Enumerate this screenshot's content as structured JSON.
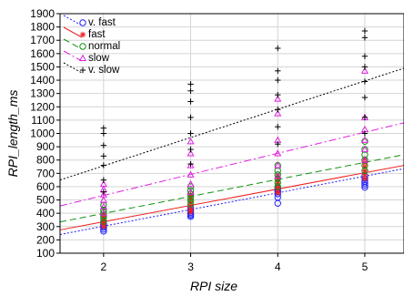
{
  "chart_data": {
    "type": "scatter",
    "xlabel": "RPI  size",
    "ylabel": "RPI_length_ms",
    "xlim": [
      1.5,
      5.45
    ],
    "ylim": [
      100,
      1900
    ],
    "xticks": [
      2,
      3,
      4,
      5
    ],
    "yticks": [
      100,
      200,
      300,
      400,
      500,
      600,
      700,
      800,
      900,
      1000,
      1100,
      1200,
      1300,
      1400,
      1500,
      1600,
      1700,
      1800,
      1900
    ],
    "grid": true,
    "legend_position": "top-left",
    "series": [
      {
        "name": "v. fast",
        "marker": "circle",
        "color": "#2020ff",
        "line_style": "dotted",
        "fit": [
          [
            1.5,
            240
          ],
          [
            5.45,
            735
          ]
        ],
        "points": [
          [
            2,
            265
          ],
          [
            2,
            280
          ],
          [
            2,
            295
          ],
          [
            2,
            305
          ],
          [
            2,
            315
          ],
          [
            2,
            325
          ],
          [
            3,
            375
          ],
          [
            3,
            385
          ],
          [
            3,
            395
          ],
          [
            3,
            405
          ],
          [
            3,
            420
          ],
          [
            3,
            440
          ],
          [
            4,
            475
          ],
          [
            4,
            520
          ],
          [
            4,
            545
          ],
          [
            4,
            560
          ],
          [
            4,
            575
          ],
          [
            4,
            590
          ],
          [
            5,
            595
          ],
          [
            5,
            610
          ],
          [
            5,
            625
          ],
          [
            5,
            640
          ],
          [
            5,
            660
          ],
          [
            5,
            680
          ]
        ]
      },
      {
        "name": "fast",
        "marker": "asterisk",
        "color": "#ee2020",
        "line_style": "solid",
        "fit": [
          [
            1.5,
            275
          ],
          [
            5.45,
            760
          ]
        ],
        "points": [
          [
            2,
            300
          ],
          [
            2,
            320
          ],
          [
            2,
            335
          ],
          [
            2,
            350
          ],
          [
            2,
            370
          ],
          [
            2,
            390
          ],
          [
            3,
            410
          ],
          [
            3,
            430
          ],
          [
            3,
            455
          ],
          [
            3,
            480
          ],
          [
            3,
            510
          ],
          [
            3,
            540
          ],
          [
            4,
            555
          ],
          [
            4,
            580
          ],
          [
            4,
            600
          ],
          [
            4,
            625
          ],
          [
            4,
            650
          ],
          [
            4,
            680
          ],
          [
            5,
            660
          ],
          [
            5,
            690
          ],
          [
            5,
            720
          ],
          [
            5,
            750
          ],
          [
            5,
            780
          ],
          [
            5,
            810
          ]
        ]
      },
      {
        "name": "normal",
        "marker": "circle",
        "color": "#109010",
        "line_style": "dashed",
        "fit": [
          [
            1.5,
            335
          ],
          [
            5.45,
            840
          ]
        ],
        "points": [
          [
            2,
            340
          ],
          [
            2,
            365
          ],
          [
            2,
            385
          ],
          [
            2,
            405
          ],
          [
            2,
            425
          ],
          [
            2,
            460
          ],
          [
            3,
            470
          ],
          [
            3,
            495
          ],
          [
            3,
            520
          ],
          [
            3,
            545
          ],
          [
            3,
            570
          ],
          [
            3,
            600
          ],
          [
            4,
            600
          ],
          [
            4,
            630
          ],
          [
            4,
            660
          ],
          [
            4,
            690
          ],
          [
            4,
            720
          ],
          [
            4,
            760
          ],
          [
            5,
            720
          ],
          [
            5,
            760
          ],
          [
            5,
            800
          ],
          [
            5,
            840
          ],
          [
            5,
            880
          ],
          [
            5,
            940
          ]
        ]
      },
      {
        "name": "slow",
        "marker": "triangle",
        "color": "#e020e0",
        "line_style": "dash-dot",
        "fit": [
          [
            1.5,
            455
          ],
          [
            5.45,
            1080
          ]
        ],
        "points": [
          [
            2,
            400
          ],
          [
            2,
            450
          ],
          [
            2,
            500
          ],
          [
            2,
            540
          ],
          [
            2,
            580
          ],
          [
            2,
            620
          ],
          [
            3,
            560
          ],
          [
            3,
            620
          ],
          [
            3,
            690
          ],
          [
            3,
            760
          ],
          [
            3,
            850
          ],
          [
            3,
            940
          ],
          [
            4,
            680
          ],
          [
            4,
            760
          ],
          [
            4,
            850
          ],
          [
            4,
            950
          ],
          [
            4,
            1150
          ],
          [
            4,
            1260
          ],
          [
            5,
            800
          ],
          [
            5,
            880
          ],
          [
            5,
            950
          ],
          [
            5,
            1030
          ],
          [
            5,
            1120
          ],
          [
            5,
            1470
          ]
        ]
      },
      {
        "name": "v. slow",
        "marker": "plus",
        "color": "#000000",
        "line_style": "dotted",
        "fit": [
          [
            1.5,
            650
          ],
          [
            5.45,
            1490
          ]
        ],
        "points": [
          [
            2,
            560
          ],
          [
            2,
            650
          ],
          [
            2,
            760
          ],
          [
            2,
            830
          ],
          [
            2,
            910
          ],
          [
            2,
            1000
          ],
          [
            2,
            1040
          ],
          [
            3,
            770
          ],
          [
            3,
            880
          ],
          [
            3,
            1000
          ],
          [
            3,
            1120
          ],
          [
            3,
            1240
          ],
          [
            3,
            1320
          ],
          [
            3,
            1370
          ],
          [
            4,
            920
          ],
          [
            4,
            1050
          ],
          [
            4,
            1180
          ],
          [
            4,
            1290
          ],
          [
            4,
            1400
          ],
          [
            4,
            1470
          ],
          [
            4,
            1640
          ],
          [
            5,
            1000
          ],
          [
            5,
            1120
          ],
          [
            5,
            1270
          ],
          [
            5,
            1390
          ],
          [
            5,
            1500
          ],
          [
            5,
            1580
          ],
          [
            5,
            1720
          ],
          [
            5,
            1770
          ]
        ]
      }
    ]
  }
}
